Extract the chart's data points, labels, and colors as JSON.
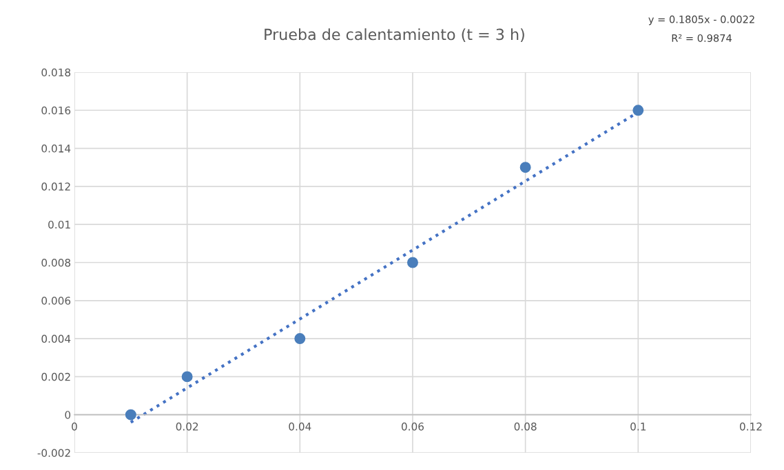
{
  "chart_data": {
    "type": "scatter",
    "title": "Prueba de calentamiento (t = 3 h)",
    "x": [
      0.01,
      0.02,
      0.04,
      0.06,
      0.08,
      0.1
    ],
    "series": [
      {
        "color": "#4a7ebb",
        "values": [
          0,
          0.002,
          0.004,
          0.008,
          0.013,
          0.016
        ],
        "marker": "circle"
      },
      {
        "type": "line",
        "color": "#4472c4",
        "x": [
          0.01,
          0.1
        ],
        "values": [
          -0.0004,
          0.0159
        ],
        "line_style": "dotted",
        "marker": "none"
      }
    ],
    "xlim": [
      0,
      0.12
    ],
    "xticks": [
      0,
      0.02,
      0.04,
      0.06,
      0.08,
      0.1,
      0.12
    ],
    "ylim": [
      -0.002,
      0.018
    ],
    "yticks": [
      -0.002,
      0,
      0.002,
      0.004,
      0.006,
      0.008,
      0.01,
      0.012,
      0.014,
      0.016,
      0.018
    ],
    "grid": true,
    "legend": false,
    "annotations": [
      "y = 0.1805x - 0.0022",
      "R² = 0.9874"
    ]
  }
}
